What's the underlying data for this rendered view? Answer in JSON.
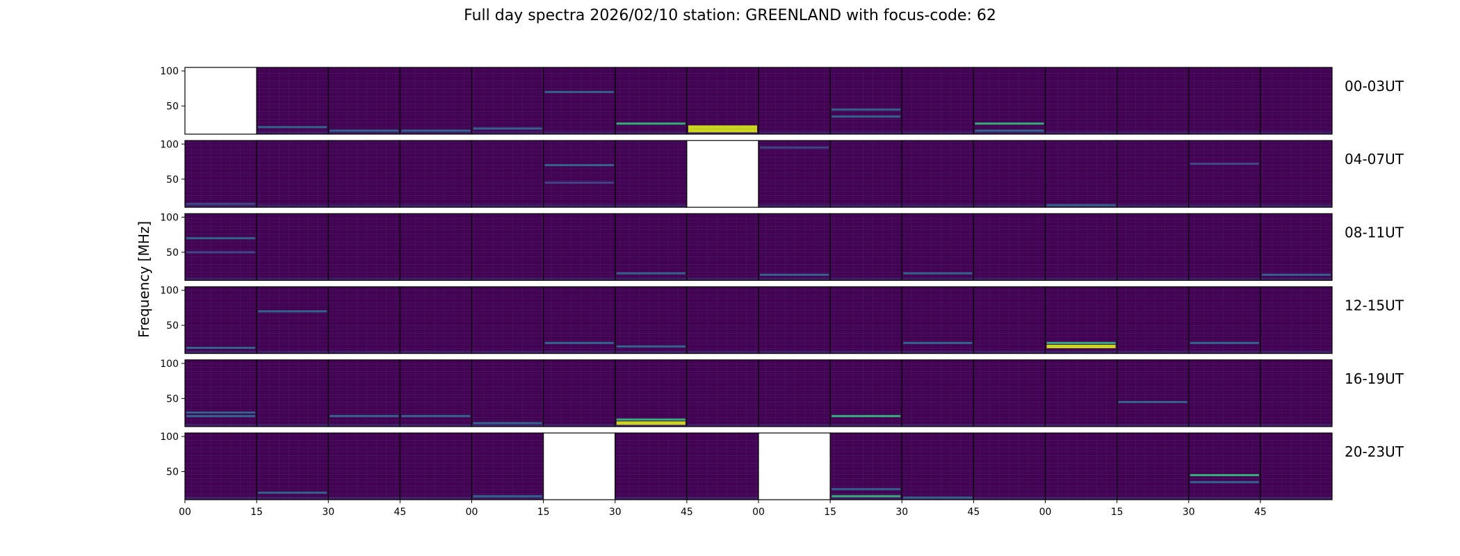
{
  "chart_data": {
    "type": "heatmap",
    "title": "Full day spectra 2026/02/10 station: GREENLAND with focus-code: 62",
    "ylabel": "Frequency [MHz]",
    "ylim": [
      10,
      105
    ],
    "yticks": [
      100,
      50
    ],
    "xticks": [
      "00",
      "15",
      "30",
      "45",
      "00",
      "15",
      "30",
      "45",
      "00",
      "15",
      "30",
      "45",
      "00",
      "15",
      "30",
      "45"
    ],
    "colormap": {
      "low": "#46145a",
      "base": "#440154",
      "mid": "#31688e",
      "bright": "#35b779",
      "peak": "#d2e21b",
      "missing": "#ffffff"
    },
    "rows": [
      {
        "label": "00-03UT",
        "missing": [
          0
        ],
        "bands": [
          {
            "panel": 1,
            "f": 20,
            "intensity": 0.45
          },
          {
            "panel": 2,
            "f": 15,
            "intensity": 0.5
          },
          {
            "panel": 3,
            "f": 15,
            "intensity": 0.5
          },
          {
            "panel": 4,
            "f": 18,
            "intensity": 0.45
          },
          {
            "panel": 5,
            "f": 70,
            "intensity": 0.55
          },
          {
            "panel": 6,
            "f": 25,
            "intensity": 0.7
          },
          {
            "panel": 7,
            "f": 15,
            "intensity": 1.0
          },
          {
            "panel": 7,
            "f": 20,
            "intensity": 0.9
          },
          {
            "panel": 9,
            "f": 45,
            "intensity": 0.6
          },
          {
            "panel": 9,
            "f": 35,
            "intensity": 0.5
          },
          {
            "panel": 11,
            "f": 25,
            "intensity": 0.7
          },
          {
            "panel": 11,
            "f": 15,
            "intensity": 0.45
          }
        ]
      },
      {
        "label": "04-07UT",
        "missing": [
          7
        ],
        "bands": [
          {
            "panel": 0,
            "f": 15,
            "intensity": 0.4
          },
          {
            "panel": 5,
            "f": 70,
            "intensity": 0.55
          },
          {
            "panel": 5,
            "f": 45,
            "intensity": 0.35
          },
          {
            "panel": 8,
            "f": 95,
            "intensity": 0.4
          },
          {
            "panel": 12,
            "f": 13,
            "intensity": 0.55
          },
          {
            "panel": 14,
            "f": 72,
            "intensity": 0.4
          }
        ]
      },
      {
        "label": "08-11UT",
        "missing": [],
        "bands": [
          {
            "panel": 0,
            "f": 70,
            "intensity": 0.45
          },
          {
            "panel": 0,
            "f": 50,
            "intensity": 0.4
          },
          {
            "panel": 6,
            "f": 20,
            "intensity": 0.5
          },
          {
            "panel": 8,
            "f": 18,
            "intensity": 0.45
          },
          {
            "panel": 10,
            "f": 20,
            "intensity": 0.55
          },
          {
            "panel": 15,
            "f": 18,
            "intensity": 0.45
          }
        ]
      },
      {
        "label": "12-15UT",
        "missing": [],
        "bands": [
          {
            "panel": 0,
            "f": 18,
            "intensity": 0.5
          },
          {
            "panel": 1,
            "f": 70,
            "intensity": 0.5
          },
          {
            "panel": 5,
            "f": 25,
            "intensity": 0.6
          },
          {
            "panel": 6,
            "f": 20,
            "intensity": 0.5
          },
          {
            "panel": 10,
            "f": 25,
            "intensity": 0.5
          },
          {
            "panel": 12,
            "f": 20,
            "intensity": 1.0
          },
          {
            "panel": 12,
            "f": 25,
            "intensity": 0.75
          },
          {
            "panel": 14,
            "f": 25,
            "intensity": 0.5
          }
        ]
      },
      {
        "label": "16-19UT",
        "missing": [],
        "bands": [
          {
            "panel": 0,
            "f": 25,
            "intensity": 0.6
          },
          {
            "panel": 0,
            "f": 30,
            "intensity": 0.55
          },
          {
            "panel": 2,
            "f": 25,
            "intensity": 0.55
          },
          {
            "panel": 3,
            "f": 25,
            "intensity": 0.5
          },
          {
            "panel": 4,
            "f": 15,
            "intensity": 0.6
          },
          {
            "panel": 6,
            "f": 15,
            "intensity": 1.0
          },
          {
            "panel": 6,
            "f": 20,
            "intensity": 0.85
          },
          {
            "panel": 9,
            "f": 25,
            "intensity": 0.85
          },
          {
            "panel": 13,
            "f": 45,
            "intensity": 0.5
          }
        ]
      },
      {
        "label": "20-23UT",
        "missing": [
          5,
          8
        ],
        "bands": [
          {
            "panel": 1,
            "f": 20,
            "intensity": 0.45
          },
          {
            "panel": 4,
            "f": 15,
            "intensity": 0.5
          },
          {
            "panel": 9,
            "f": 15,
            "intensity": 0.8
          },
          {
            "panel": 9,
            "f": 25,
            "intensity": 0.6
          },
          {
            "panel": 10,
            "f": 13,
            "intensity": 0.6
          },
          {
            "panel": 14,
            "f": 45,
            "intensity": 0.75
          },
          {
            "panel": 14,
            "f": 35,
            "intensity": 0.5
          }
        ]
      }
    ]
  }
}
